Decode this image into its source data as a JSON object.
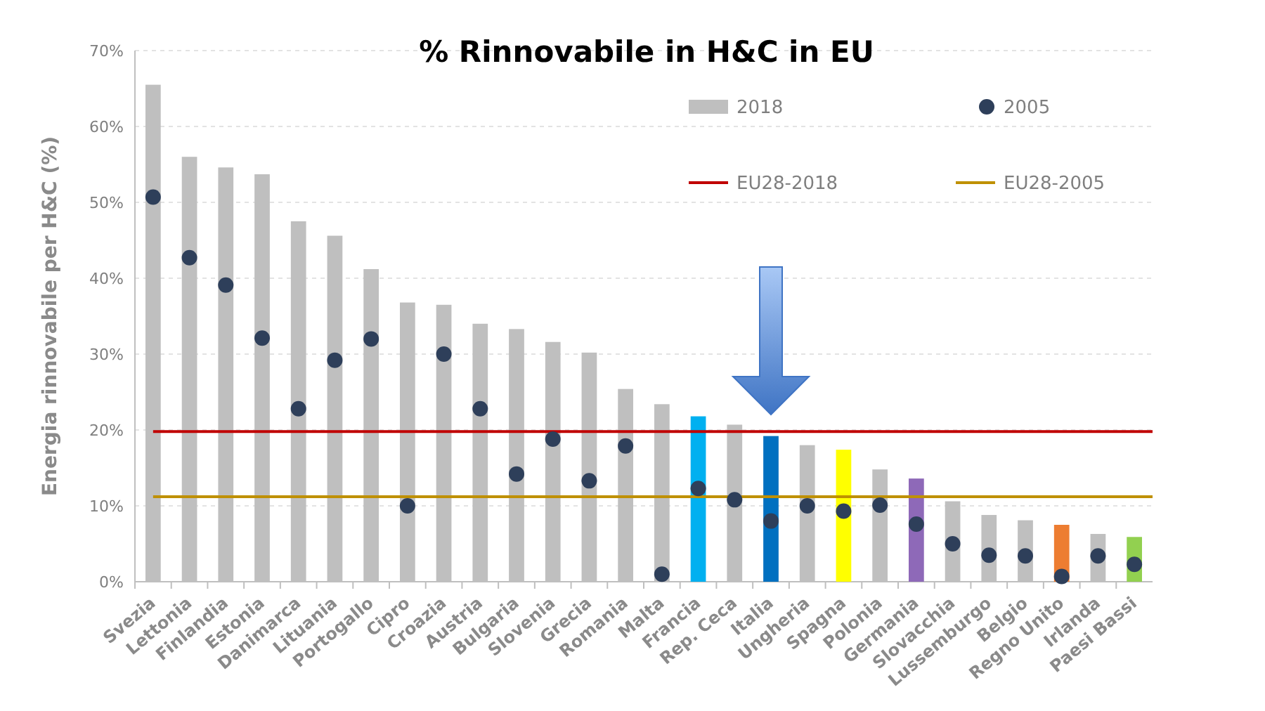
{
  "chart_data": {
    "type": "bar",
    "title": "% Rinnovabile in H&C in EU",
    "ylabel": "Energia rinnovabile per H&C (%)",
    "categories": [
      "Svezia",
      "Lettonia",
      "Finlandia",
      "Estonia",
      "Danimarca",
      "Lituania",
      "Portogallo",
      "Cipro",
      "Croazia",
      "Austria",
      "Bulgaria",
      "Slovenia",
      "Grecia",
      "Romania",
      "Malta",
      "Francia",
      "Rep. Ceca",
      "Italia",
      "Ungheria",
      "Spagna",
      "Polonia",
      "Germania",
      "Slovacchia",
      "Lussemburgo",
      "Belgio",
      "Regno Unito",
      "Irlanda",
      "Paesi Bassi"
    ],
    "series": [
      {
        "name": "2018",
        "color": "#bfbfbf",
        "colors": [
          "#bfbfbf",
          "#bfbfbf",
          "#bfbfbf",
          "#bfbfbf",
          "#bfbfbf",
          "#bfbfbf",
          "#bfbfbf",
          "#bfbfbf",
          "#bfbfbf",
          "#bfbfbf",
          "#bfbfbf",
          "#bfbfbf",
          "#bfbfbf",
          "#bfbfbf",
          "#bfbfbf",
          "#00b0f0",
          "#bfbfbf",
          "#0070c0",
          "#bfbfbf",
          "#ffff00",
          "#bfbfbf",
          "#8e69b8",
          "#bfbfbf",
          "#bfbfbf",
          "#bfbfbf",
          "#ed7d31",
          "#bfbfbf",
          "#92d050"
        ],
        "values": [
          65.5,
          56,
          54.6,
          53.7,
          47.5,
          45.6,
          41.2,
          36.8,
          36.5,
          34,
          33.3,
          31.6,
          30.2,
          25.4,
          23.4,
          21.8,
          20.7,
          19.2,
          18,
          17.4,
          14.8,
          13.6,
          10.6,
          8.8,
          8.1,
          7.5,
          6.3,
          5.9
        ]
      },
      {
        "name": "2005",
        "type": "scatter",
        "color": "#2e3f5a",
        "x": [
          "Svezia",
          "Lettonia",
          "Finlandia",
          "Estonia",
          "Danimarca",
          "Lituania",
          "Portogallo",
          "Cipro",
          "Croazia",
          "Austria",
          "Bulgaria",
          "Slovenia",
          "Grecia",
          "Romania",
          "Malta",
          "Francia",
          "Rep. Ceca",
          "Italia",
          "Ungheria",
          "Spagna",
          "Polonia",
          "Germania",
          "Slovacchia",
          "Lussemburgo",
          "Belgio",
          "Regno Unito",
          "Irlanda",
          "Paesi Bassi"
        ],
        "values": [
          50.7,
          42.7,
          39.1,
          32.1,
          22.8,
          29.2,
          32,
          10,
          30,
          22.8,
          14.2,
          18.8,
          13.3,
          17.9,
          1,
          12.3,
          10.8,
          8,
          10,
          9.3,
          10.1,
          7.6,
          5,
          3.5,
          3.4,
          0.7,
          3.4,
          2.3
        ]
      }
    ],
    "ref_lines": [
      {
        "axis": "y",
        "value": 19.8,
        "label": "EU28-2018",
        "color": "#c00000"
      },
      {
        "axis": "y",
        "value": 11.2,
        "label": "EU28-2005",
        "color": "#bf9000"
      }
    ],
    "ylim": [
      0,
      70
    ],
    "yticks": [
      {
        "value": 0,
        "label": "0%"
      },
      {
        "value": 10,
        "label": "10%"
      },
      {
        "value": 20,
        "label": "20%"
      },
      {
        "value": 30,
        "label": "30%"
      },
      {
        "value": 40,
        "label": "40%"
      },
      {
        "value": 50,
        "label": "50%"
      },
      {
        "value": 60,
        "label": "60%"
      },
      {
        "value": 70,
        "label": "70%"
      }
    ],
    "grid": "y",
    "legend": "top right",
    "marker": "circle"
  }
}
